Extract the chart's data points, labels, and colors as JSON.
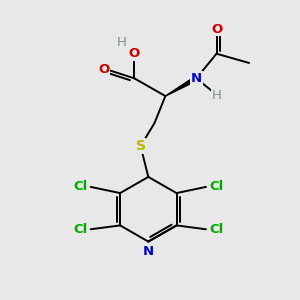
{
  "background_color": "#e8e8e8",
  "figsize": [
    3.0,
    3.0
  ],
  "dpi": 100,
  "colors": {
    "bond": "#000000",
    "O": "#cc0000",
    "N": "#0000cc",
    "S": "#b8b800",
    "Cl": "#00aa00",
    "H": "#7a9090",
    "C": "#000000"
  }
}
